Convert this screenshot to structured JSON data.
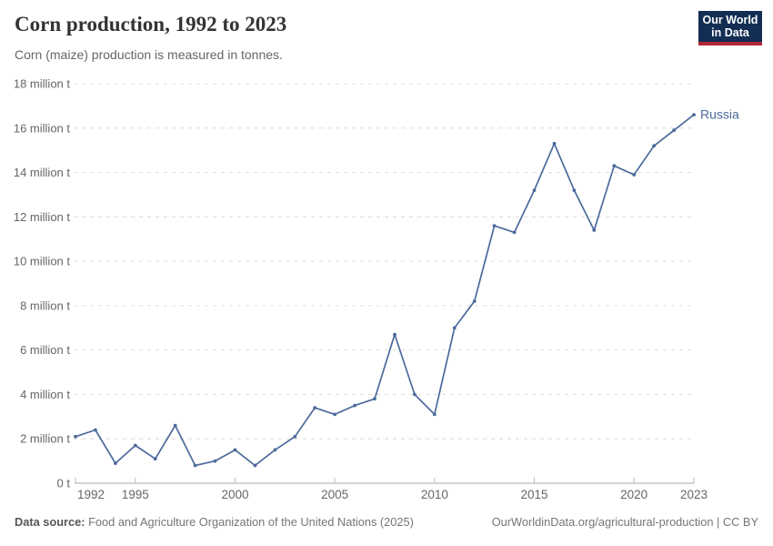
{
  "header": {
    "title": "Corn production, 1992 to 2023",
    "subtitle": "Corn (maize) production is measured in tonnes."
  },
  "logo": {
    "line1": "Our World",
    "line2": "in Data",
    "bg_color": "#132e52",
    "accent_color": "#b22737"
  },
  "chart_data": {
    "type": "line",
    "title": "Corn production, 1992 to 2023",
    "xlabel": "",
    "ylabel": "million t",
    "x": [
      1992,
      1993,
      1994,
      1995,
      1996,
      1997,
      1998,
      1999,
      2000,
      2001,
      2002,
      2003,
      2004,
      2005,
      2006,
      2007,
      2008,
      2009,
      2010,
      2011,
      2012,
      2013,
      2014,
      2015,
      2016,
      2017,
      2018,
      2019,
      2020,
      2021,
      2022,
      2023
    ],
    "series": [
      {
        "name": "Russia",
        "color": "#4c6a9c",
        "values": [
          2.1,
          2.4,
          0.9,
          1.7,
          1.1,
          2.6,
          0.8,
          1.0,
          1.5,
          0.8,
          1.5,
          2.1,
          3.4,
          3.1,
          3.5,
          3.8,
          6.7,
          4.0,
          3.1,
          7.0,
          8.2,
          11.6,
          11.3,
          13.2,
          15.3,
          13.2,
          11.4,
          14.3,
          13.9,
          15.2,
          15.9,
          16.6
        ]
      }
    ],
    "ylim": [
      0,
      18
    ],
    "ytick_step": 2,
    "ytick_label_zero": "0 t",
    "ytick_label_suffix": " million t",
    "xticks": [
      1992,
      1995,
      2000,
      2005,
      2010,
      2015,
      2020,
      2023
    ],
    "grid": "horizontal-dashed",
    "legend_position": "end-of-line"
  },
  "footer": {
    "source_label": "Data source:",
    "source_text": "Food and Agriculture Organization of the United Nations (2025)",
    "credit": "OurWorldinData.org/agricultural-production | CC BY"
  }
}
